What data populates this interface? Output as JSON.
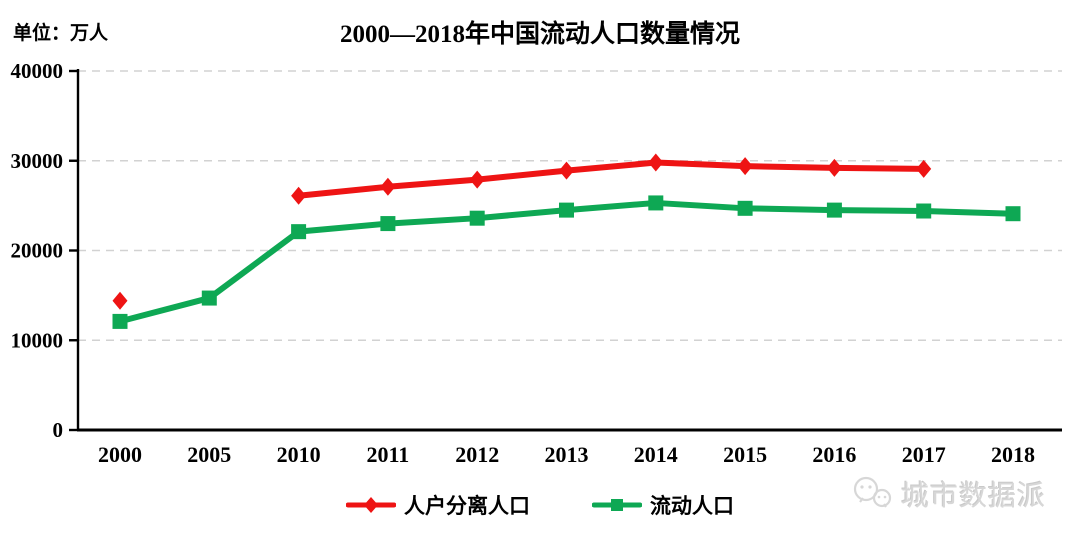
{
  "header": {
    "unit_label": "单位：万人",
    "title": "2000—2018年中国流动人口数量情况"
  },
  "chart_data": {
    "type": "line",
    "title": "2000—2018年中国流动人口数量情况",
    "unit": "万人",
    "categories": [
      "2000",
      "2005",
      "2010",
      "2011",
      "2012",
      "2013",
      "2014",
      "2015",
      "2016",
      "2017",
      "2018"
    ],
    "series": [
      {
        "name": "人户分离人口",
        "color": "#ee1414",
        "marker": "diamond",
        "values": [
          14400,
          null,
          26100,
          27100,
          27900,
          28900,
          29800,
          29400,
          29200,
          29100,
          null
        ]
      },
      {
        "name": "流动人口",
        "color": "#0ea854",
        "marker": "square",
        "values": [
          12100,
          14700,
          22100,
          23000,
          23600,
          24500,
          25300,
          24700,
          24500,
          24400,
          24100
        ]
      }
    ],
    "ylim": [
      0,
      40000
    ],
    "yticks": [
      0,
      10000,
      20000,
      30000,
      40000
    ],
    "grid": "horizontal-dashed",
    "gridline_color": "#d2d2d2",
    "legend_position": "bottom-center"
  },
  "watermark": {
    "text": "城市数据派",
    "icon": "wechat-icon"
  }
}
